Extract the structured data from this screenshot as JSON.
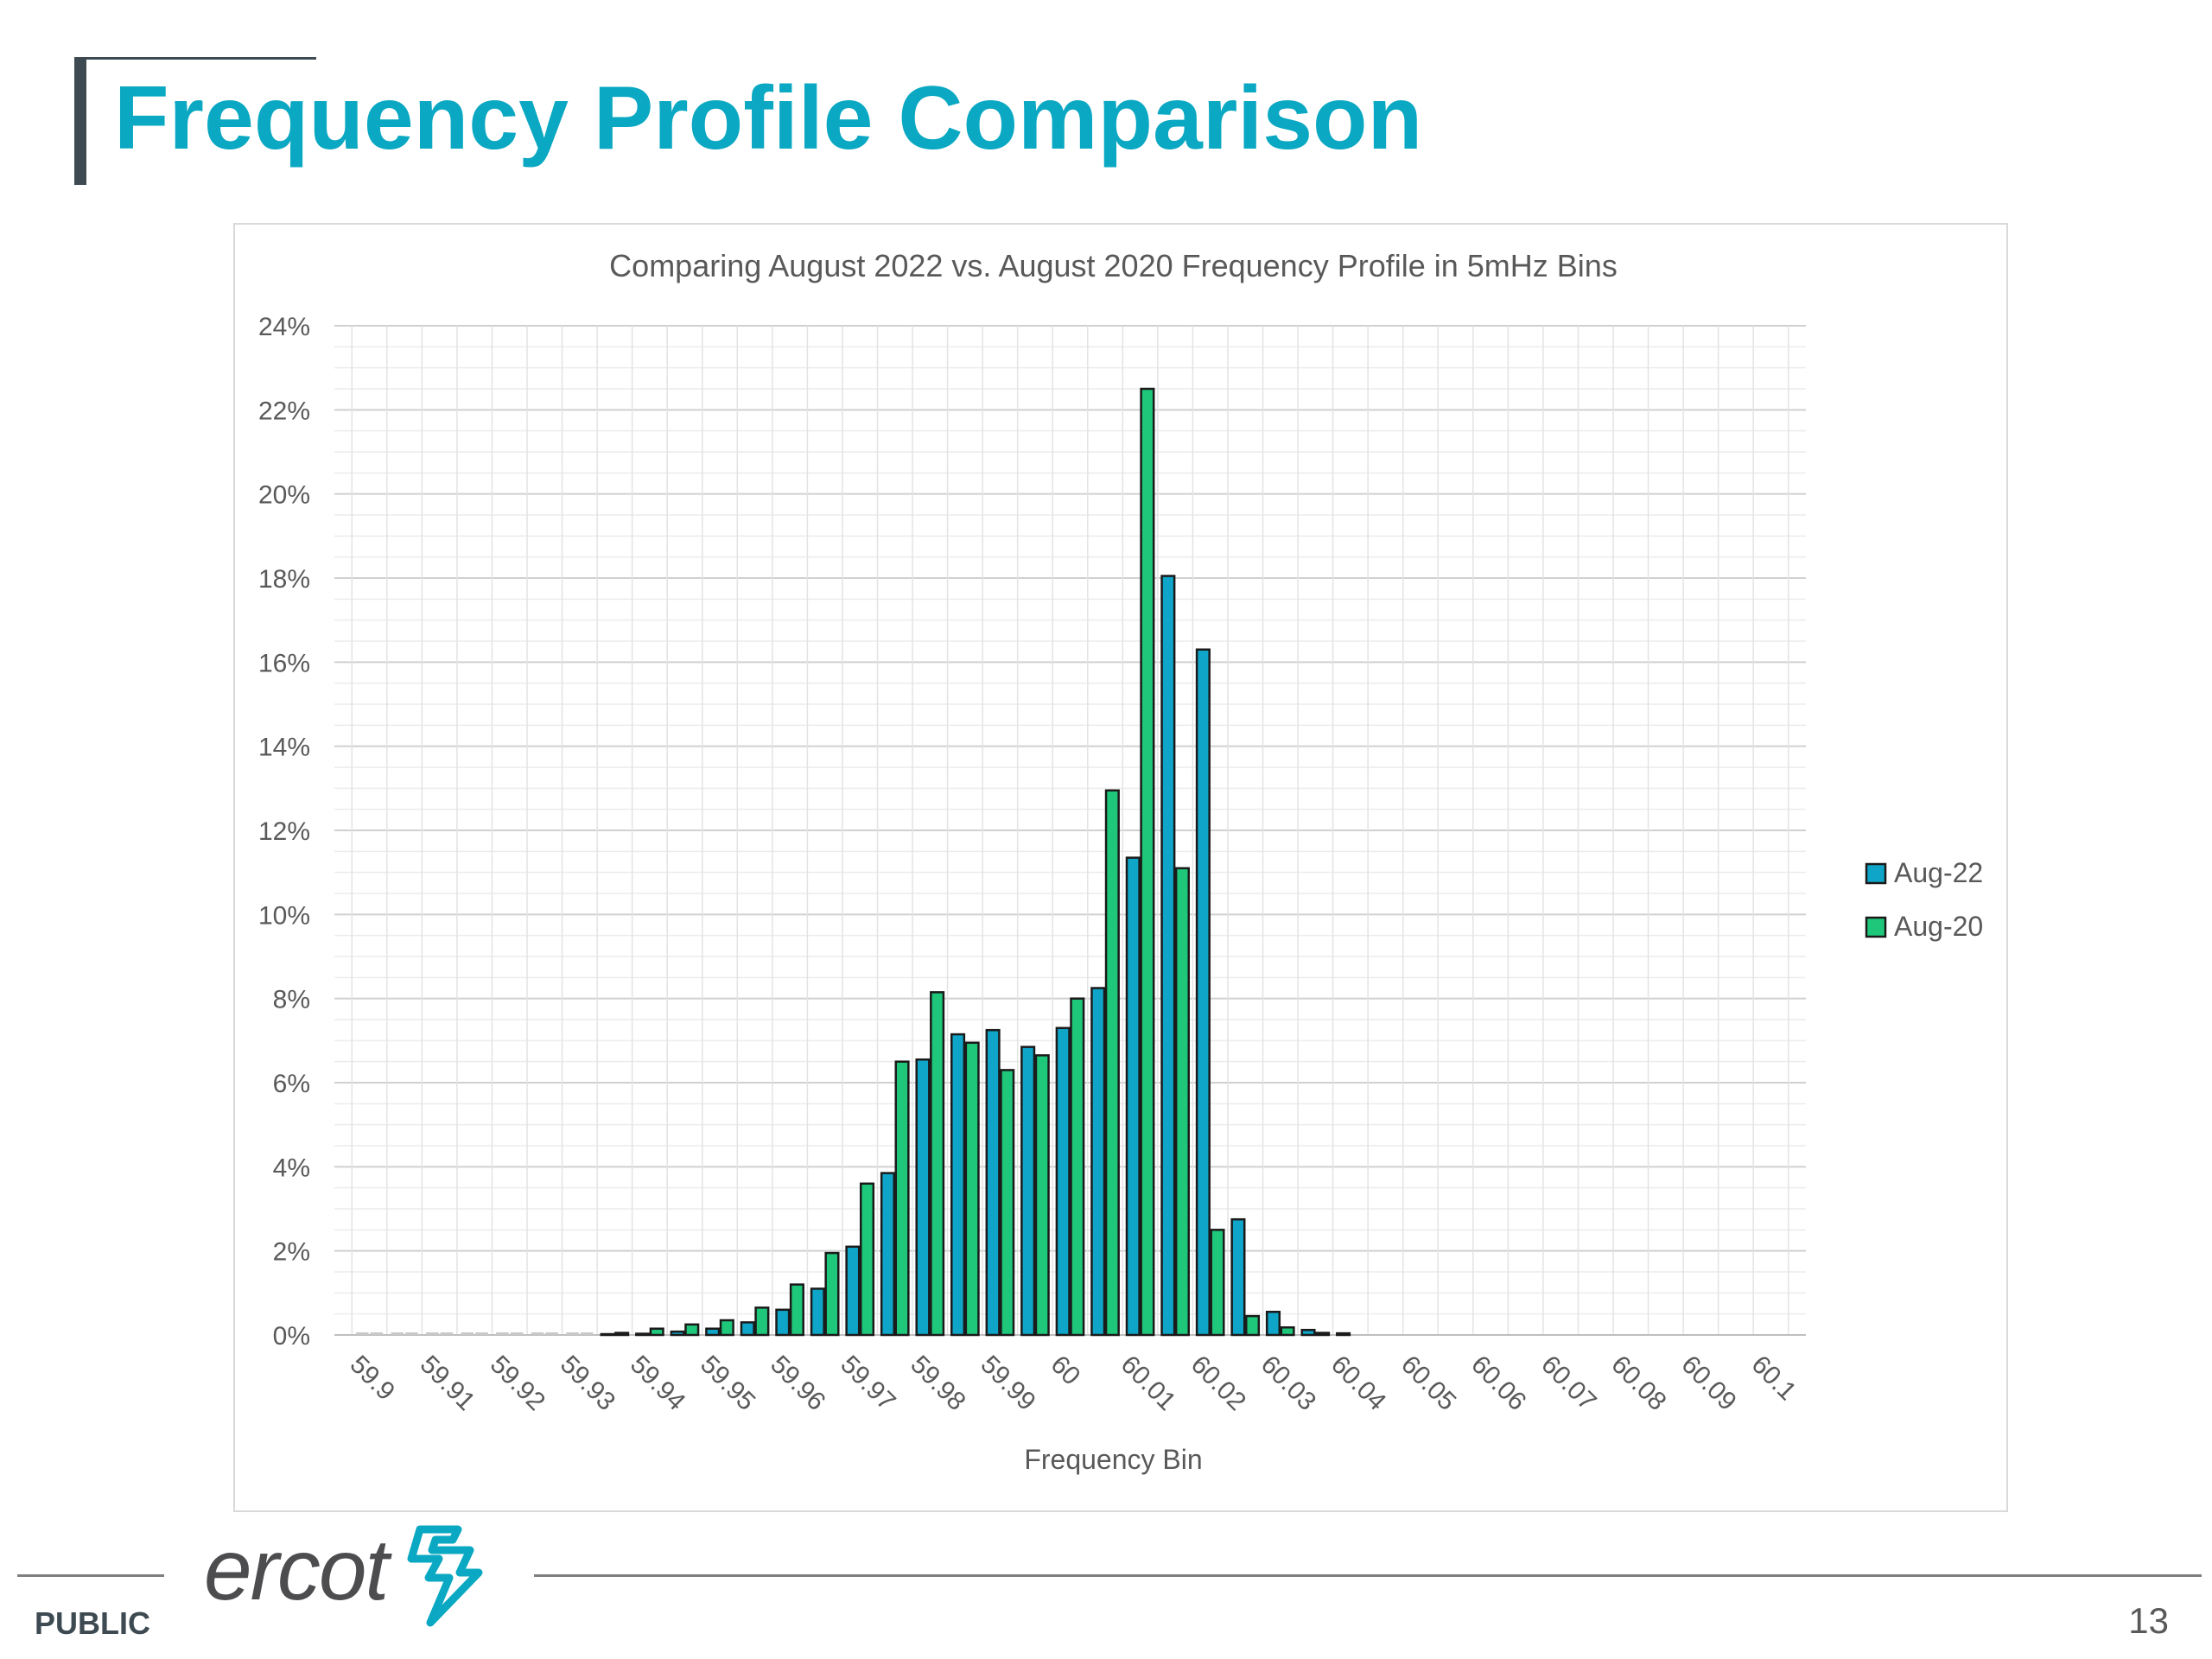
{
  "slide": {
    "title": "Frequency Profile Comparison",
    "footer_label": "PUBLIC",
    "page_number": "13",
    "logo_text": "ercot"
  },
  "colors": {
    "title": "#0aa8c2",
    "series_aug22": "#0ea5c8",
    "series_aug20": "#1fc77a",
    "bar_outline": "#1a1a1a",
    "grid": "#d9d9d9"
  },
  "chart_data": {
    "type": "bar",
    "title": "Comparing August 2022 vs. August 2020 Frequency Profile in 5mHz Bins",
    "xlabel": "Frequency Bin",
    "ylabel": "",
    "ylim": [
      0,
      24
    ],
    "y_unit": "%",
    "y_ticks": [
      "0%",
      "2%",
      "4%",
      "6%",
      "8%",
      "10%",
      "12%",
      "14%",
      "16%",
      "18%",
      "20%",
      "22%",
      "24%"
    ],
    "x_tick_labels": [
      "59.9",
      "59.91",
      "59.92",
      "59.93",
      "59.94",
      "59.95",
      "59.96",
      "59.97",
      "59.98",
      "59.99",
      "60",
      "60.01",
      "60.02",
      "60.03",
      "60.04",
      "60.05",
      "60.06",
      "60.07",
      "60.08",
      "60.09",
      "60.1"
    ],
    "categories": [
      "59.9",
      "59.905",
      "59.91",
      "59.915",
      "59.92",
      "59.925",
      "59.93",
      "59.935",
      "59.94",
      "59.945",
      "59.95",
      "59.955",
      "59.96",
      "59.965",
      "59.97",
      "59.975",
      "59.98",
      "59.985",
      "59.99",
      "59.995",
      "60",
      "60.005",
      "60.01",
      "60.015",
      "60.02",
      "60.025",
      "60.03",
      "60.035",
      "60.04",
      "60.045",
      "60.05",
      "60.055",
      "60.06",
      "60.065",
      "60.07",
      "60.075",
      "60.08",
      "60.085",
      "60.09",
      "60.095",
      "60.1"
    ],
    "grid": true,
    "legend_position": "right",
    "series": [
      {
        "name": "Aug-22",
        "values": [
          0,
          0,
          0,
          0,
          0,
          0,
          0,
          0.02,
          0.03,
          0.08,
          0.15,
          0.3,
          0.6,
          1.1,
          2.1,
          3.85,
          6.55,
          7.15,
          7.25,
          6.85,
          7.3,
          8.25,
          11.35,
          18.05,
          16.3,
          2.75,
          0.55,
          0.12,
          0.04,
          0,
          0,
          0,
          0,
          0,
          0,
          0,
          0,
          0,
          0,
          0,
          0
        ]
      },
      {
        "name": "Aug-20",
        "values": [
          0,
          0,
          0,
          0,
          0,
          0,
          0,
          0.05,
          0.15,
          0.25,
          0.35,
          0.65,
          1.2,
          1.95,
          3.6,
          6.5,
          8.15,
          6.95,
          6.3,
          6.65,
          8.0,
          12.95,
          22.5,
          11.1,
          2.5,
          0.45,
          0.18,
          0.05,
          0,
          0,
          0,
          0,
          0,
          0,
          0,
          0,
          0,
          0,
          0,
          0,
          0
        ]
      }
    ]
  }
}
